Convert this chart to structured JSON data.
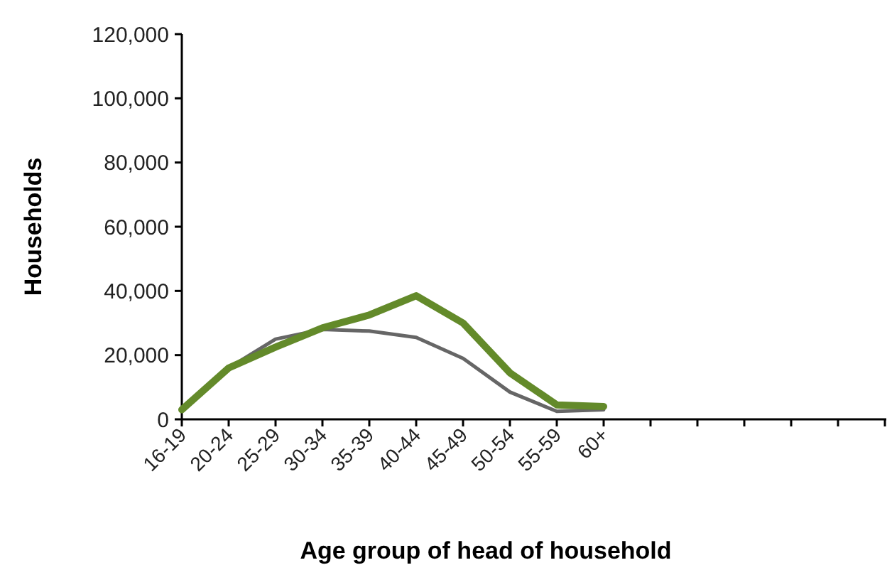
{
  "chart_data": {
    "type": "line",
    "xlabel": "Age group of head of household",
    "ylabel": "Households",
    "categories": [
      "16-19",
      "20-24",
      "25-29",
      "30-34",
      "35-39",
      "40-44",
      "45-49",
      "50-54",
      "55-59",
      "60+",
      null,
      null,
      null,
      null,
      null,
      null
    ],
    "series": [
      {
        "color": "#666666",
        "values": [
          3000,
          16000,
          25000,
          28000,
          27500,
          25500,
          19000,
          8500,
          2500,
          3000,
          null,
          null,
          null,
          null,
          null,
          null
        ]
      },
      {
        "color": "#638a2a",
        "values": [
          3000,
          16000,
          22500,
          28500,
          32500,
          38500,
          30000,
          14500,
          4500,
          4000,
          null,
          null,
          null,
          null,
          null,
          null
        ]
      }
    ],
    "ylim": [
      0,
      120000
    ],
    "yticks": [
      {
        "value": 0,
        "label": "0"
      },
      {
        "value": 20000,
        "label": "20,000"
      },
      {
        "value": 40000,
        "label": "40,000"
      },
      {
        "value": 60000,
        "label": "60,000"
      },
      {
        "value": 80000,
        "label": "80,000"
      },
      {
        "value": 100000,
        "label": "100,000"
      },
      {
        "value": 120000,
        "label": "120,000"
      }
    ],
    "grid": false,
    "marker": "none",
    "line_style": "solid"
  }
}
